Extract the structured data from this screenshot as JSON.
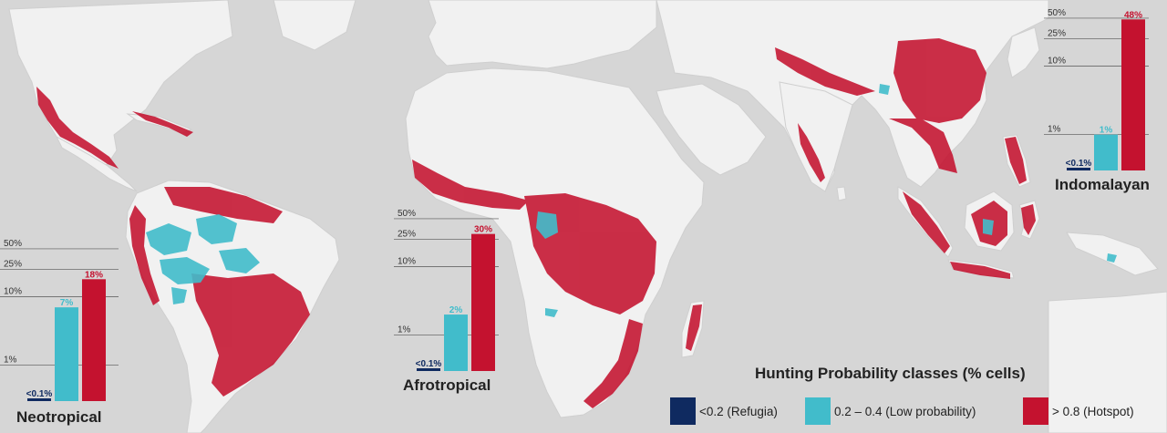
{
  "map": {
    "colors": {
      "ocean": "#d6d6d6",
      "land": "#f1f1f1",
      "border": "#cfcfcf",
      "refugia": "#0f2a60",
      "low": "#41bccb",
      "hotspot": "#c4122f"
    }
  },
  "regions": [
    {
      "key": "neotropical",
      "title": "Neotropical",
      "bars": [
        {
          "cls": "refugia",
          "value": 0.05,
          "label": "<0.1%"
        },
        {
          "cls": "low",
          "value": 7,
          "label": "7%"
        },
        {
          "cls": "hotspot",
          "value": 18,
          "label": "18%"
        }
      ]
    },
    {
      "key": "afrotropical",
      "title": "Afrotropical",
      "bars": [
        {
          "cls": "refugia",
          "value": 0.05,
          "label": "<0.1%"
        },
        {
          "cls": "low",
          "value": 2,
          "label": "2%"
        },
        {
          "cls": "hotspot",
          "value": 30,
          "label": "30%"
        }
      ]
    },
    {
      "key": "indomalayan",
      "title": "Indomalayan",
      "bars": [
        {
          "cls": "refugia",
          "value": 0.05,
          "label": "<0.1%"
        },
        {
          "cls": "low",
          "value": 1,
          "label": "1%"
        },
        {
          "cls": "hotspot",
          "value": 48,
          "label": "48%"
        }
      ]
    }
  ],
  "chart_data": [
    {
      "type": "bar",
      "title": "Neotropical",
      "categories": [
        "<0.2 (Refugia)",
        "0.2 – 0.4 (Low probability)",
        "> 0.8 (Hotspot)"
      ],
      "values": [
        0.05,
        7,
        18
      ],
      "labels": [
        "<0.1%",
        "7%",
        "18%"
      ],
      "yticks": [
        "1%",
        "10%",
        "25%",
        "50%"
      ],
      "scale": "log"
    },
    {
      "type": "bar",
      "title": "Afrotropical",
      "categories": [
        "<0.2 (Refugia)",
        "0.2 – 0.4 (Low probability)",
        "> 0.8 (Hotspot)"
      ],
      "values": [
        0.05,
        2,
        30
      ],
      "labels": [
        "<0.1%",
        "2%",
        "30%"
      ],
      "yticks": [
        "1%",
        "10%",
        "25%",
        "50%"
      ],
      "scale": "log"
    },
    {
      "type": "bar",
      "title": "Indomalayan",
      "categories": [
        "<0.2 (Refugia)",
        "0.2 – 0.4 (Low probability)",
        "> 0.8 (Hotspot)"
      ],
      "values": [
        0.05,
        1,
        48
      ],
      "labels": [
        "<0.1%",
        "1%",
        "48%"
      ],
      "yticks": [
        "1%",
        "10%",
        "25%",
        "50%"
      ],
      "scale": "log"
    }
  ],
  "legend": {
    "title": "Hunting Probability classes (% cells)",
    "items": [
      {
        "cls": "refugia",
        "label": "<0.2 (Refugia)"
      },
      {
        "cls": "low",
        "label": "0.2 – 0.4 (Low probability)"
      },
      {
        "cls": "hotspot",
        "label": "> 0.8 (Hotspot)"
      }
    ]
  }
}
